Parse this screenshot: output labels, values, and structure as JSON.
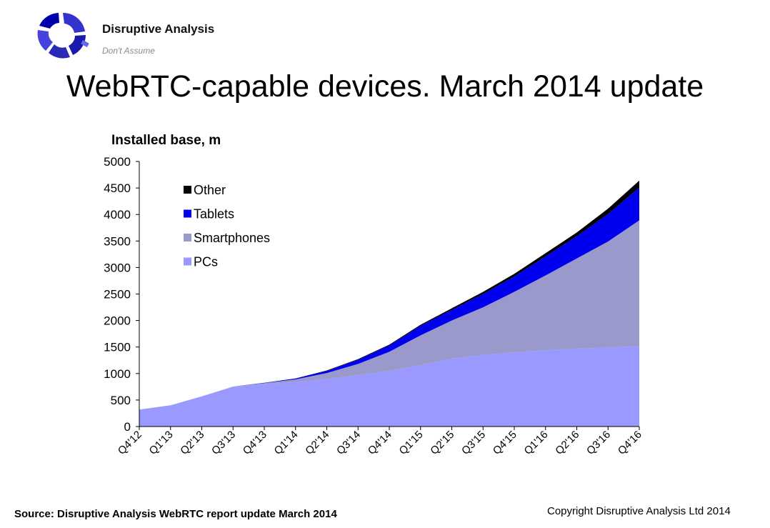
{
  "brand": {
    "name": "Disruptive Analysis",
    "tagline": "Don't Assume"
  },
  "slide": {
    "title": "WebRTC-capable devices. March 2014 update"
  },
  "footer": {
    "source": "Source: Disruptive Analysis WebRTC report update March 2014",
    "copyright": "Copyright Disruptive Analysis Ltd 2014"
  },
  "chart_data": {
    "type": "area",
    "stacked": true,
    "title": "",
    "ylabel": "Installed base, m",
    "xlabel": "",
    "ylim": [
      0,
      5000
    ],
    "yticks": [
      0,
      500,
      1000,
      1500,
      2000,
      2500,
      3000,
      3500,
      4000,
      4500,
      5000
    ],
    "legend_position": "top-left",
    "categories": [
      "Q4'12",
      "Q1'13",
      "Q2'13",
      "Q3'13",
      "Q4'13",
      "Q1'14",
      "Q2'14",
      "Q3'14",
      "Q4'14",
      "Q1'15",
      "Q2'15",
      "Q3'15",
      "Q4'15",
      "Q1'16",
      "Q2'16",
      "Q3'16",
      "Q4'16"
    ],
    "series": [
      {
        "name": "PCs",
        "color": "#9999ff",
        "values": [
          320,
          400,
          570,
          750,
          800,
          840,
          900,
          970,
          1050,
          1160,
          1280,
          1350,
          1400,
          1440,
          1470,
          1490,
          1520
        ]
      },
      {
        "name": "Smartphones",
        "color": "#9999cc",
        "values": [
          0,
          0,
          0,
          5,
          20,
          50,
          110,
          210,
          360,
          560,
          720,
          900,
          1140,
          1410,
          1700,
          2000,
          2370
        ]
      },
      {
        "name": "Tablets",
        "color": "#0000ee",
        "values": [
          0,
          0,
          0,
          0,
          5,
          15,
          40,
          80,
          120,
          180,
          200,
          250,
          290,
          360,
          420,
          520,
          620
        ]
      },
      {
        "name": "Other",
        "color": "#000000",
        "values": [
          0,
          0,
          0,
          0,
          0,
          3,
          8,
          12,
          15,
          20,
          30,
          40,
          50,
          60,
          70,
          100,
          130
        ]
      }
    ]
  }
}
